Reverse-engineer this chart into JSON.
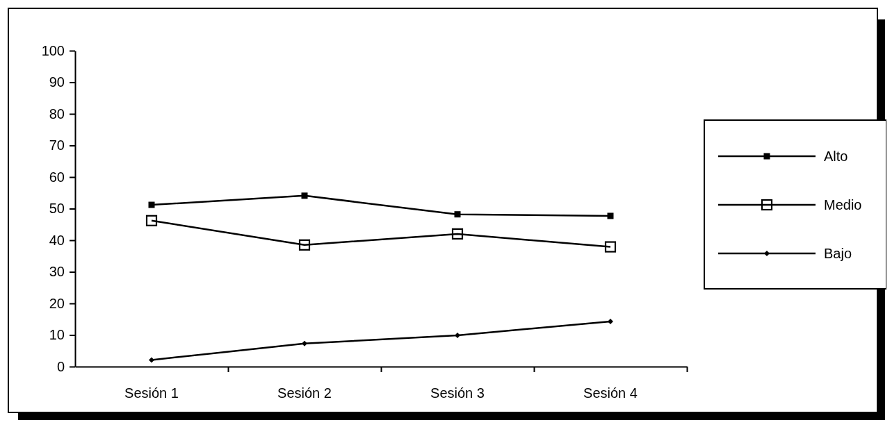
{
  "chart_data": {
    "type": "line",
    "categories": [
      "Sesión 1",
      "Sesión 2",
      "Sesión 3",
      "Sesión 4"
    ],
    "series": [
      {
        "name": "Alto",
        "color": "#000000",
        "marker": "square",
        "values": [
          51.2,
          54.1,
          48.2,
          47.7
        ]
      },
      {
        "name": "Medio",
        "color": "#000000",
        "marker": "square",
        "values": [
          46.2,
          38.5,
          42,
          37.9
        ]
      },
      {
        "name": "Bajo",
        "color": "#000000",
        "marker": "diamond",
        "values": [
          2.1,
          7.3,
          9.9,
          14.3
        ]
      }
    ],
    "ylim": [
      0,
      100
    ],
    "yticks": [
      0,
      10,
      20,
      30,
      40,
      50,
      60,
      70,
      80,
      90,
      100
    ],
    "grid": false,
    "legend": "right",
    "line_style": "solid"
  }
}
